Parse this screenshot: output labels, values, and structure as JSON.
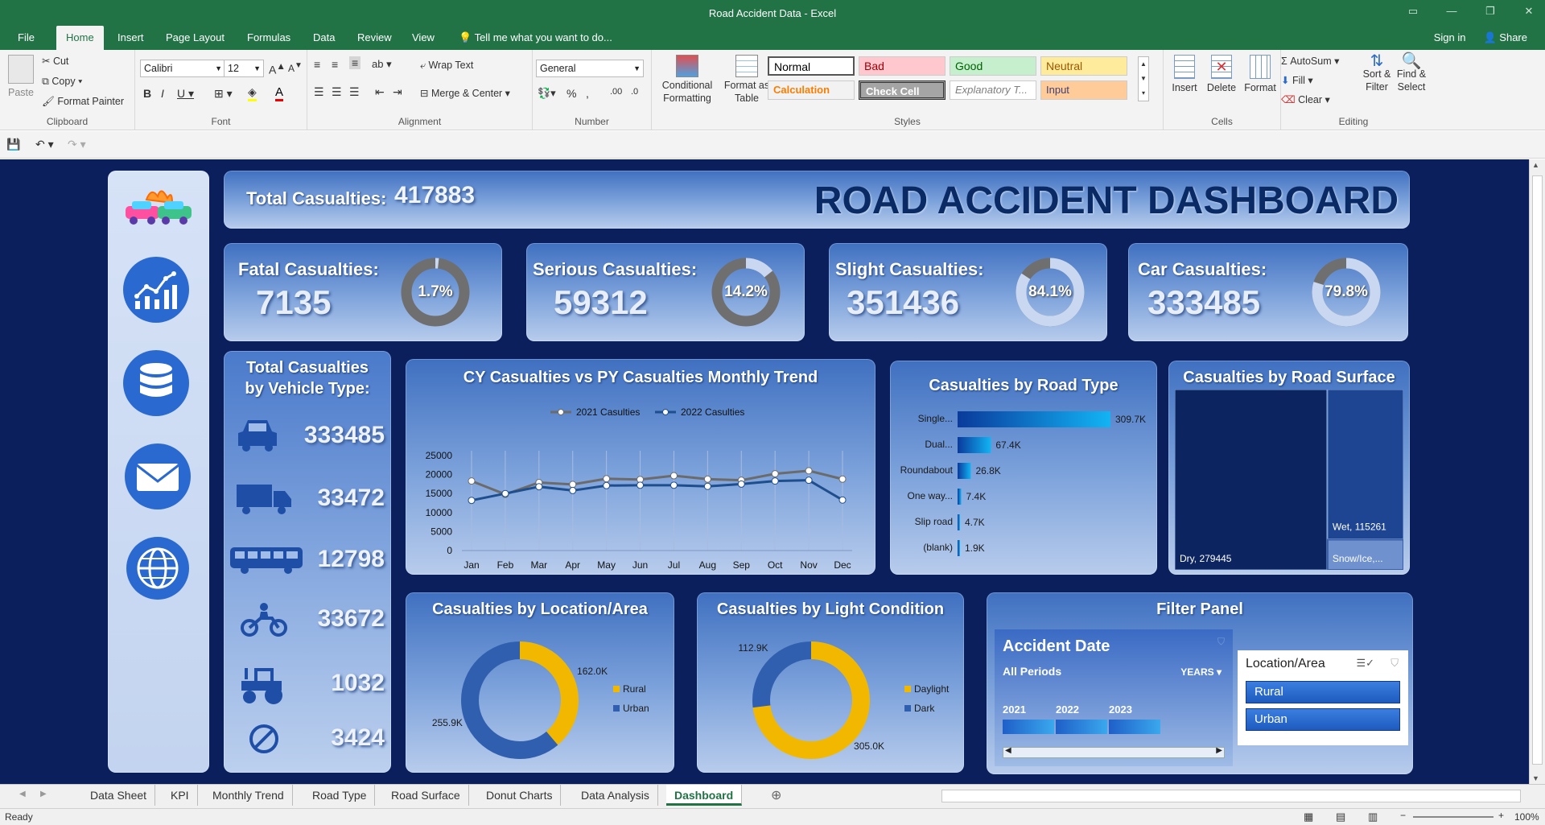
{
  "window": {
    "title": "Road Accident Data - Excel"
  },
  "menu": {
    "tabs": [
      "File",
      "Home",
      "Insert",
      "Page Layout",
      "Formulas",
      "Data",
      "Review",
      "View"
    ],
    "active": "Home",
    "tell_me": "Tell me what you want to do...",
    "sign_in": "Sign in",
    "share": "Share"
  },
  "ribbon": {
    "clipboard": {
      "paste": "Paste",
      "cut": "Cut",
      "copy": "Copy",
      "format_painter": "Format Painter",
      "label": "Clipboard"
    },
    "font": {
      "name": "Calibri",
      "size": "12",
      "label": "Font"
    },
    "alignment": {
      "wrap": "Wrap Text",
      "merge": "Merge & Center",
      "label": "Alignment"
    },
    "number": {
      "format": "General",
      "label": "Number"
    },
    "styles": {
      "conditional": "Conditional Formatting",
      "format_table": "Format as Table",
      "label": "Styles",
      "cells": [
        {
          "name": "Normal",
          "bg": "#ffffff",
          "fg": "#000000"
        },
        {
          "name": "Bad",
          "bg": "#ffc7ce",
          "fg": "#9c0006"
        },
        {
          "name": "Good",
          "bg": "#c6efce",
          "fg": "#006100"
        },
        {
          "name": "Neutral",
          "bg": "#ffeb9c",
          "fg": "#9c5700"
        },
        {
          "name": "Calculation",
          "bg": "#f2f2f2",
          "fg": "#fa7d00"
        },
        {
          "name": "Check Cell",
          "bg": "#a5a5a5",
          "fg": "#ffffff"
        },
        {
          "name": "Explanatory T...",
          "bg": "#ffffff",
          "fg": "#7f7f7f"
        },
        {
          "name": "Input",
          "bg": "#ffcc99",
          "fg": "#3f3f76"
        }
      ]
    },
    "cells": {
      "insert": "Insert",
      "delete": "Delete",
      "format": "Format",
      "label": "Cells"
    },
    "editing": {
      "autosum": "AutoSum",
      "fill": "Fill",
      "clear": "Clear",
      "sort": "Sort & Filter",
      "find": "Find & Select",
      "label": "Editing"
    }
  },
  "dashboard": {
    "total": {
      "label": "Total Casualties:",
      "value": "417883"
    },
    "title": "ROAD ACCIDENT DASHBOARD",
    "kpis": [
      {
        "label": "Fatal Casualties:",
        "value": "7135",
        "pct": "1.7%",
        "frac": 0.017
      },
      {
        "label": "Serious Casualties:",
        "value": "59312",
        "pct": "14.2%",
        "frac": 0.142
      },
      {
        "label": "Slight Casualties:",
        "value": "351436",
        "pct": "84.1%",
        "frac": 0.841
      },
      {
        "label": "Car Casualties:",
        "value": "333485",
        "pct": "79.8%",
        "frac": 0.798
      }
    ],
    "vehicle": {
      "title_line1": "Total Casualties",
      "title_line2": "by Vehicle Type:",
      "items": [
        {
          "icon": "car-icon",
          "value": "333485"
        },
        {
          "icon": "truck-icon",
          "value": "33472"
        },
        {
          "icon": "bus-icon",
          "value": "12798"
        },
        {
          "icon": "motorbike-icon",
          "value": "33672"
        },
        {
          "icon": "tractor-icon",
          "value": "1032"
        },
        {
          "icon": "no-entry-icon",
          "value": "3424"
        }
      ]
    },
    "trend_title": "CY Casualties vs PY Casualties Monthly Trend",
    "road_type_title": "Casualties by Road Type",
    "road_surface_title": "Casualties by Road Surface",
    "location_title": "Casualties by Location/Area",
    "light_title": "Casualties by Light Condition",
    "filter": {
      "title": "Filter Panel",
      "date_title": "Accident Date",
      "periods": "All Periods",
      "years_label": "YEARS",
      "years": [
        "2021",
        "2022",
        "2023"
      ],
      "loc_title": "Location/Area",
      "loc_items": [
        "Rural",
        "Urban"
      ]
    }
  },
  "chart_data": [
    {
      "type": "line",
      "title": "CY Casualties vs PY Casualties Monthly Trend",
      "categories": [
        "Jan",
        "Feb",
        "Mar",
        "Apr",
        "May",
        "Jun",
        "Jul",
        "Aug",
        "Sep",
        "Oct",
        "Nov",
        "Dec"
      ],
      "series": [
        {
          "name": "2021 Casulties",
          "color": "#6b6b6b",
          "values": [
            18300,
            14800,
            17900,
            17400,
            18900,
            18700,
            19700,
            18800,
            18500,
            20200,
            21000,
            18800
          ]
        },
        {
          "name": "2022 Casulties",
          "color": "#1f4e8c",
          "values": [
            13200,
            15000,
            16800,
            15800,
            17100,
            17200,
            17200,
            16900,
            17500,
            18300,
            18500,
            13300
          ]
        }
      ],
      "yticks": [
        0,
        5000,
        10000,
        15000,
        20000,
        25000
      ],
      "ylim": [
        0,
        25000
      ]
    },
    {
      "type": "bar",
      "title": "Casualties by Road Type",
      "categories": [
        "Single...",
        "Dual...",
        "Roundabout",
        "One way...",
        "Slip road",
        "(blank)"
      ],
      "values": [
        309.7,
        67.4,
        26.8,
        7.4,
        4.7,
        1.9
      ],
      "labels": [
        "309.7K",
        "67.4K",
        "26.8K",
        "7.4K",
        "4.7K",
        "1.9K"
      ]
    },
    {
      "type": "heatmap",
      "title": "Casualties by Road Surface",
      "items": [
        {
          "label": "Dry, 279445",
          "value": 279445
        },
        {
          "label": "Wet, 115261",
          "value": 115261
        },
        {
          "label": "Snow/Ice,...",
          "value": 23177
        }
      ]
    },
    {
      "type": "pie",
      "title": "Casualties by Location/Area",
      "slices": [
        {
          "name": "Rural",
          "value": 162.0,
          "label": "162.0K",
          "color": "#f2b800"
        },
        {
          "name": "Urban",
          "value": 255.9,
          "label": "255.9K",
          "color": "#2f5fae"
        }
      ]
    },
    {
      "type": "pie",
      "title": "Casualties by Light Condition",
      "slices": [
        {
          "name": "Daylight",
          "value": 305.0,
          "label": "305.0K",
          "color": "#f2b800"
        },
        {
          "name": "Dark",
          "value": 112.9,
          "label": "112.9K",
          "color": "#2f5fae"
        }
      ]
    }
  ],
  "sheets": {
    "tabs": [
      "Data Sheet",
      "KPI",
      "Monthly Trend",
      "Road Type",
      "Road Surface",
      "Donut Charts",
      "Data Analysis",
      "Dashboard"
    ],
    "active": "Dashboard"
  },
  "status": {
    "ready": "Ready",
    "zoom": "100%"
  }
}
